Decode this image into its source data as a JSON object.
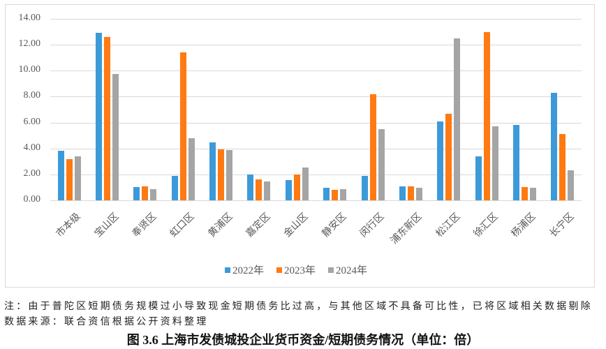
{
  "chart_data": {
    "type": "bar",
    "title": "图 3.6 上海市发债城投企业货币资金/短期债务情况（单位：倍）",
    "xlabel": "",
    "ylabel": "",
    "ylim": [
      0,
      14
    ],
    "yticks": [
      "0.00",
      "2.00",
      "4.00",
      "6.00",
      "8.00",
      "10.00",
      "12.00",
      "14.00"
    ],
    "grid": true,
    "legend_position": "bottom",
    "categories": [
      "市本级",
      "宝山区",
      "奉贤区",
      "虹口区",
      "黄浦区",
      "嘉定区",
      "金山区",
      "静安区",
      "闵行区",
      "浦东新区",
      "松江区",
      "徐汇区",
      "杨浦区",
      "长宁区"
    ],
    "series": [
      {
        "name": "2022年",
        "color": "#3d9ad9",
        "values": [
          3.8,
          12.9,
          1.0,
          1.9,
          4.45,
          2.0,
          1.55,
          0.97,
          1.88,
          1.08,
          6.1,
          3.4,
          5.8,
          8.3
        ]
      },
      {
        "name": "2023年",
        "color": "#ff7a12",
        "values": [
          3.2,
          12.6,
          1.06,
          11.4,
          3.93,
          1.6,
          2.0,
          0.79,
          8.2,
          1.08,
          6.7,
          13.0,
          1.0,
          5.1
        ]
      },
      {
        "name": "2024年",
        "color": "#a5a5a5",
        "values": [
          3.37,
          9.75,
          0.86,
          4.8,
          3.86,
          1.45,
          2.53,
          0.86,
          5.5,
          0.97,
          12.5,
          5.7,
          0.95,
          2.3
        ]
      }
    ]
  },
  "legend": {
    "items": [
      {
        "label": "2022年",
        "color": "#3d9ad9"
      },
      {
        "label": "2023年",
        "color": "#ff7a12"
      },
      {
        "label": "2024年",
        "color": "#a5a5a5"
      }
    ]
  },
  "notes": {
    "note": "注：由于普陀区短期债务规模过小导致现金短期债务比过高，与其他区域不具备可比性，已将区域相关数据剔除",
    "source": "数据来源：联合资信根据公开资料整理"
  },
  "caption": "图 3.6  上海市发债城投企业货币资金/短期债务情况（单位：倍）"
}
